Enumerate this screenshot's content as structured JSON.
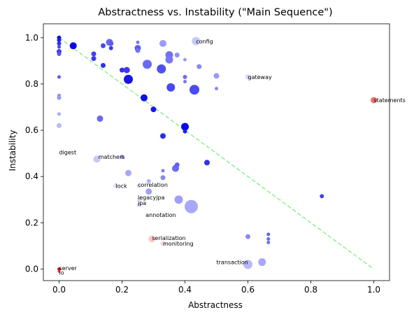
{
  "chart_data": {
    "type": "scatter",
    "title": "Abstractness vs. Instability (\"Main Sequence\")",
    "xlabel": "Abstractness",
    "ylabel": "Instability",
    "xlim": [
      -0.05,
      1.05
    ],
    "ylim": [
      -0.05,
      1.06
    ],
    "xticks": [
      0.0,
      0.2,
      0.4,
      0.6,
      0.8,
      1.0
    ],
    "yticks": [
      0.0,
      0.2,
      0.4,
      0.6,
      0.8,
      1.0
    ],
    "grid": false,
    "reference_line": {
      "from": [
        0,
        1
      ],
      "to": [
        1,
        0
      ],
      "color": "#90ee90",
      "style": "dashed"
    },
    "points": [
      {
        "x": 0.0,
        "y": 1.0,
        "r": 3,
        "color": "#0a0af0"
      },
      {
        "x": 0.0,
        "y": 0.99,
        "r": 3,
        "color": "#1e1ef0"
      },
      {
        "x": 0.0,
        "y": 0.975,
        "r": 3,
        "color": "#3030f0"
      },
      {
        "x": 0.0,
        "y": 0.96,
        "r": 2.5,
        "color": "#4a4af5"
      },
      {
        "x": 0.0,
        "y": 0.94,
        "r": 3.5,
        "color": "#3a3af2"
      },
      {
        "x": 0.0,
        "y": 0.93,
        "r": 3,
        "color": "#5555f5"
      },
      {
        "x": 0.0,
        "y": 0.83,
        "r": 2.5,
        "color": "#5a5af5"
      },
      {
        "x": 0.0,
        "y": 0.75,
        "r": 2.5,
        "color": "#8888f5"
      },
      {
        "x": 0.0,
        "y": 0.74,
        "r": 3,
        "color": "#9999f7"
      },
      {
        "x": 0.0,
        "y": 0.67,
        "r": 2.5,
        "color": "#a8a8f8"
      },
      {
        "x": 0.0,
        "y": 0.62,
        "r": 3.5,
        "color": "#b8b8fa"
      },
      {
        "x": 0.045,
        "y": 0.965,
        "r": 5,
        "color": "#0a0ae8"
      },
      {
        "x": 0.11,
        "y": 0.93,
        "r": 3.5,
        "color": "#4040f0"
      },
      {
        "x": 0.11,
        "y": 0.91,
        "r": 3.5,
        "color": "#3a3af0"
      },
      {
        "x": 0.14,
        "y": 0.965,
        "r": 3.5,
        "color": "#4848f2"
      },
      {
        "x": 0.14,
        "y": 0.88,
        "r": 3.5,
        "color": "#3030ee"
      },
      {
        "x": 0.16,
        "y": 0.98,
        "r": 5,
        "color": "#6a6af5"
      },
      {
        "x": 0.165,
        "y": 0.975,
        "r": 3.5,
        "color": "#5a5af4"
      },
      {
        "x": 0.165,
        "y": 0.955,
        "r": 3,
        "color": "#3a3af0"
      },
      {
        "x": 0.2,
        "y": 0.86,
        "r": 3.5,
        "color": "#3030ee"
      },
      {
        "x": 0.215,
        "y": 0.86,
        "r": 4.5,
        "color": "#3a3af0"
      },
      {
        "x": 0.22,
        "y": 0.82,
        "r": 6.5,
        "color": "#1515e8"
      },
      {
        "x": 0.25,
        "y": 0.98,
        "r": 2.5,
        "color": "#7777f5"
      },
      {
        "x": 0.25,
        "y": 0.955,
        "r": 4.5,
        "color": "#5a5af4"
      },
      {
        "x": 0.25,
        "y": 0.945,
        "r": 3.5,
        "color": "#7070f5"
      },
      {
        "x": 0.28,
        "y": 0.885,
        "r": 6.5,
        "color": "#6a6af5"
      },
      {
        "x": 0.27,
        "y": 0.74,
        "r": 5,
        "color": "#1010e8"
      },
      {
        "x": 0.3,
        "y": 0.69,
        "r": 4,
        "color": "#1515e8"
      },
      {
        "x": 0.33,
        "y": 0.975,
        "r": 5,
        "color": "#9a9af7"
      },
      {
        "x": 0.325,
        "y": 0.865,
        "r": 6.5,
        "color": "#5050f2"
      },
      {
        "x": 0.35,
        "y": 0.925,
        "r": 5.5,
        "color": "#7070f5"
      },
      {
        "x": 0.35,
        "y": 0.905,
        "r": 5.5,
        "color": "#7777f5"
      },
      {
        "x": 0.355,
        "y": 0.785,
        "r": 6,
        "color": "#4848f0"
      },
      {
        "x": 0.375,
        "y": 0.925,
        "r": 3.5,
        "color": "#9090f7"
      },
      {
        "x": 0.4,
        "y": 0.905,
        "r": 2.5,
        "color": "#9a9af7"
      },
      {
        "x": 0.4,
        "y": 0.83,
        "r": 3,
        "color": "#6a6af5"
      },
      {
        "x": 0.4,
        "y": 0.81,
        "r": 2.5,
        "color": "#7777f5"
      },
      {
        "x": 0.43,
        "y": 0.775,
        "r": 7,
        "color": "#4a4af2"
      },
      {
        "x": 0.435,
        "y": 0.985,
        "r": 6,
        "color": "#c8c8fb"
      },
      {
        "x": 0.445,
        "y": 0.875,
        "r": 3.5,
        "color": "#8888f5"
      },
      {
        "x": 0.5,
        "y": 0.835,
        "r": 4,
        "color": "#9a9af7"
      },
      {
        "x": 0.5,
        "y": 0.78,
        "r": 2.5,
        "color": "#8888f5"
      },
      {
        "x": 0.6,
        "y": 0.83,
        "r": 3.5,
        "color": "#d0d0fb"
      },
      {
        "x": 0.13,
        "y": 0.65,
        "r": 4.5,
        "color": "#6868f3"
      },
      {
        "x": 0.33,
        "y": 0.575,
        "r": 4,
        "color": "#2a2aee"
      },
      {
        "x": 0.4,
        "y": 0.615,
        "r": 5.5,
        "color": "#0a0ae8"
      },
      {
        "x": 0.4,
        "y": 0.595,
        "r": 3,
        "color": "#2020ec"
      },
      {
        "x": 0.12,
        "y": 0.475,
        "r": 5,
        "color": "#c8c8fa"
      },
      {
        "x": 0.2,
        "y": 0.485,
        "r": 3,
        "color": "#9a9af7"
      },
      {
        "x": 0.22,
        "y": 0.415,
        "r": 4.5,
        "color": "#a8a8f8"
      },
      {
        "x": 0.18,
        "y": 0.36,
        "r": 3.5,
        "color": "#e0e0fc"
      },
      {
        "x": 0.255,
        "y": 0.36,
        "r": 3,
        "color": "#dcdcfc"
      },
      {
        "x": 0.285,
        "y": 0.38,
        "r": 3,
        "color": "#b0b0f8"
      },
      {
        "x": 0.285,
        "y": 0.335,
        "r": 4.5,
        "color": "#a0a0f7"
      },
      {
        "x": 0.33,
        "y": 0.425,
        "r": 2.5,
        "color": "#7f7ff5"
      },
      {
        "x": 0.33,
        "y": 0.395,
        "r": 3.5,
        "color": "#8888f5"
      },
      {
        "x": 0.37,
        "y": 0.435,
        "r": 5,
        "color": "#6a6af5"
      },
      {
        "x": 0.375,
        "y": 0.45,
        "r": 3.5,
        "color": "#6060f3"
      },
      {
        "x": 0.47,
        "y": 0.46,
        "r": 4,
        "color": "#3333ee"
      },
      {
        "x": 0.255,
        "y": 0.3,
        "r": 3,
        "color": "#dcdcfc"
      },
      {
        "x": 0.255,
        "y": 0.28,
        "r": 3,
        "color": "#d8d8fc"
      },
      {
        "x": 0.38,
        "y": 0.3,
        "r": 6,
        "color": "#a0a0f7"
      },
      {
        "x": 0.42,
        "y": 0.27,
        "r": 9.5,
        "color": "#a8a8f8"
      },
      {
        "x": 0.6,
        "y": 0.14,
        "r": 3.5,
        "color": "#8888f5"
      },
      {
        "x": 0.665,
        "y": 0.15,
        "r": 2.5,
        "color": "#6060f3"
      },
      {
        "x": 0.665,
        "y": 0.13,
        "r": 2.5,
        "color": "#6a6af5"
      },
      {
        "x": 0.665,
        "y": 0.115,
        "r": 2.5,
        "color": "#7070f5"
      },
      {
        "x": 0.835,
        "y": 0.315,
        "r": 3,
        "color": "#4040f0"
      },
      {
        "x": 0.6,
        "y": 0.02,
        "r": 6.5,
        "color": "#b8b8fa"
      },
      {
        "x": 0.645,
        "y": 0.03,
        "r": 5.5,
        "color": "#a8a8f8"
      },
      {
        "x": 0.295,
        "y": 0.13,
        "r": 5,
        "color": "#ffc8c8"
      },
      {
        "x": 0.33,
        "y": 0.11,
        "r": 3.5,
        "color": "#ffd8d8"
      },
      {
        "x": 1.0,
        "y": 0.73,
        "r": 4.5,
        "color": "#f07070"
      },
      {
        "x": 0.0,
        "y": 0.0,
        "r": 2.5,
        "color": "#dd1010"
      },
      {
        "x": 0.0,
        "y": -0.01,
        "r": 2,
        "color": "#e04040"
      }
    ],
    "annotations": [
      {
        "text": "config",
        "x": 0.435,
        "y": 0.985
      },
      {
        "text": "gateway",
        "x": 0.6,
        "y": 0.83
      },
      {
        "text": "statements",
        "x": 1.0,
        "y": 0.73
      },
      {
        "text": "digest",
        "x": 0.0,
        "y": 0.505
      },
      {
        "text": "matchers",
        "x": 0.125,
        "y": 0.485
      },
      {
        "text": "lock",
        "x": 0.18,
        "y": 0.36
      },
      {
        "text": "correlation",
        "x": 0.25,
        "y": 0.365
      },
      {
        "text": "legacyjpa",
        "x": 0.25,
        "y": 0.31
      },
      {
        "text": "jpa",
        "x": 0.25,
        "y": 0.285
      },
      {
        "text": "annotation",
        "x": 0.275,
        "y": 0.235
      },
      {
        "text": "serialization",
        "x": 0.295,
        "y": 0.135
      },
      {
        "text": "monitoring",
        "x": 0.33,
        "y": 0.11
      },
      {
        "text": "transaction",
        "x": 0.5,
        "y": 0.03
      },
      {
        "text": "server",
        "x": 0.0,
        "y": 0.005
      },
      {
        "text": "io",
        "x": 0.0,
        "y": -0.015
      }
    ]
  }
}
